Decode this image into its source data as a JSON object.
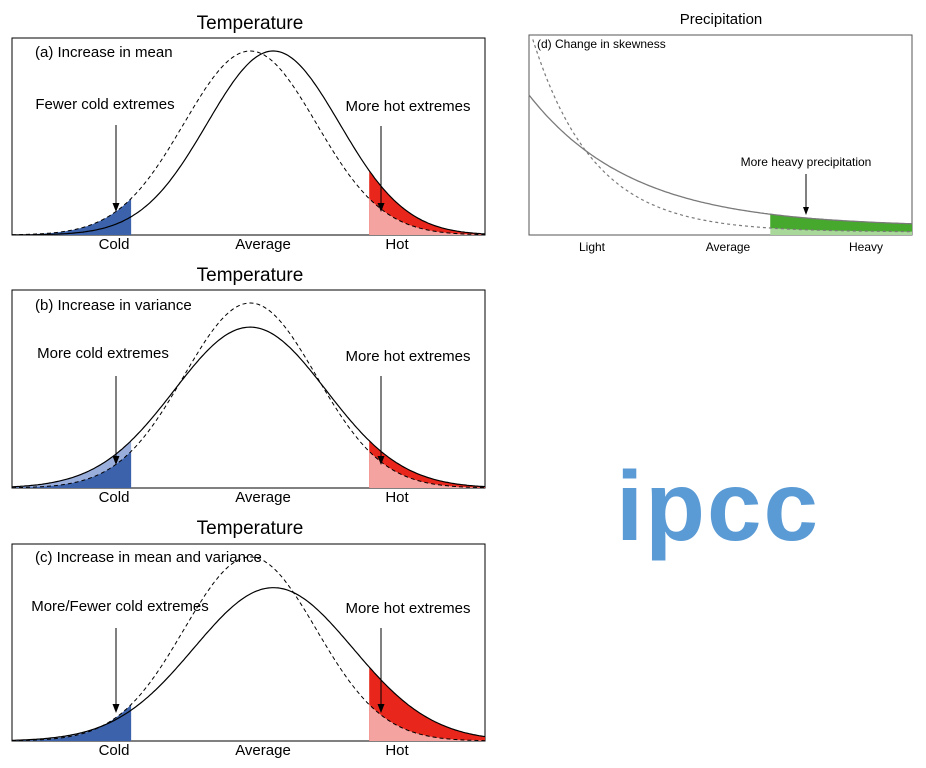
{
  "temperature_panels": [
    {
      "title": "Temperature",
      "label": "(a) Increase in mean",
      "left_annotation": "Fewer cold extremes",
      "right_annotation": "More hot extremes",
      "x_labels": {
        "cold": "Cold",
        "average": "Average",
        "hot": "Hot"
      },
      "previous_climate": {
        "mean": 0.0,
        "sd": 1.0
      },
      "future_climate": {
        "mean": 0.35,
        "sd": 1.0
      },
      "cold_threshold": -1.8,
      "hot_threshold": 1.8
    },
    {
      "title": "Temperature",
      "label": "(b) Increase in variance",
      "left_annotation": "More cold extremes",
      "right_annotation": "More hot extremes",
      "x_labels": {
        "cold": "Cold",
        "average": "Average",
        "hot": "Hot"
      },
      "previous_climate": {
        "mean": 0.0,
        "sd": 1.0
      },
      "future_climate": {
        "mean": 0.0,
        "sd": 1.15
      },
      "cold_threshold": -1.8,
      "hot_threshold": 1.8
    },
    {
      "title": "Temperature",
      "label": "(c) Increase in mean and variance",
      "left_annotation": "More/Fewer cold extremes",
      "right_annotation": "More hot extremes",
      "x_labels": {
        "cold": "Cold",
        "average": "Average",
        "hot": "Hot"
      },
      "previous_climate": {
        "mean": 0.0,
        "sd": 1.0
      },
      "future_climate": {
        "mean": 0.35,
        "sd": 1.2
      },
      "cold_threshold": -1.8,
      "hot_threshold": 1.8
    }
  ],
  "precipitation_panel": {
    "title": "Precipitation",
    "label": "(d) Change in skewness",
    "annotation": "More heavy precipitation",
    "x_labels": {
      "light": "Light",
      "average": "Average",
      "heavy": "Heavy"
    },
    "heavy_threshold": 0.63
  },
  "logo": {
    "text": "ipcc"
  },
  "colors": {
    "cold_fill": "#3b62ab",
    "cold_fill_light": "#9aaedb",
    "hot_fill": "#e8261c",
    "hot_fill_light": "#f4a3a0",
    "heavy_fill": "#46a82c",
    "heavy_fill_light": "#a8d89a",
    "logo": "#5b9bd5",
    "previous_curve": "#000000",
    "future_curve": "#000000",
    "precip_curve": "#7a7a7a"
  }
}
